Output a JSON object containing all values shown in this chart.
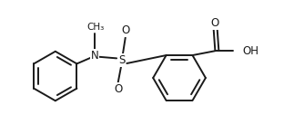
{
  "bg_color": "#ffffff",
  "line_color": "#1a1a1a",
  "line_width": 1.4,
  "font_size": 8.5,
  "figsize": [
    3.34,
    1.48
  ],
  "dpi": 100,
  "xlim": [
    -4.5,
    3.8
  ],
  "ylim": [
    -1.6,
    1.8
  ]
}
